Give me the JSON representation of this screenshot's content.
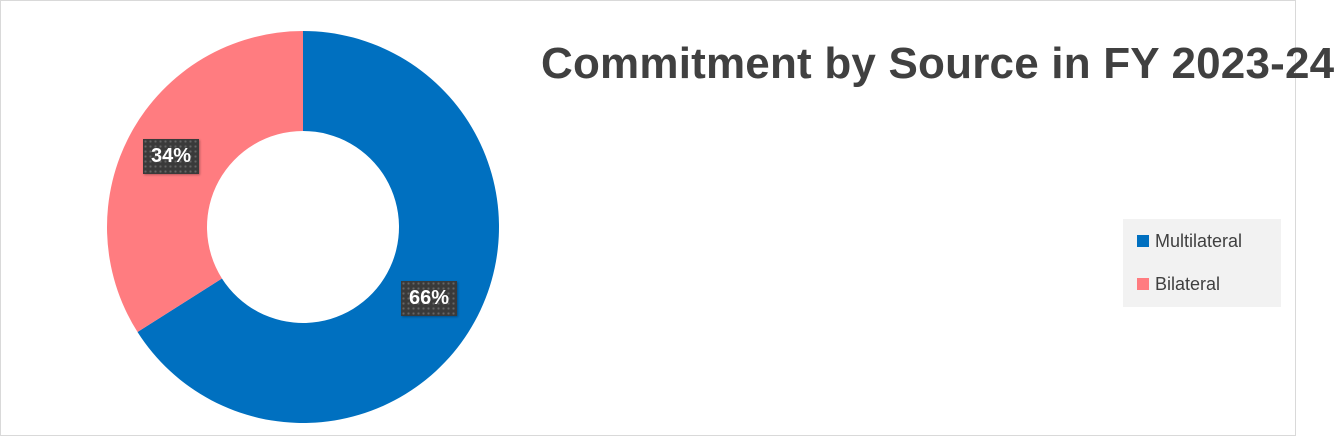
{
  "chart_data": {
    "type": "pie",
    "variant": "donut",
    "title": "Commitment by Source in FY 2023-24",
    "categories": [
      "Multilateral",
      "Bilateral"
    ],
    "values": [
      66,
      34
    ],
    "labels": [
      "66%",
      "34%"
    ],
    "colors": [
      "#0070c0",
      "#ff7c80"
    ],
    "legend_position": "right"
  }
}
